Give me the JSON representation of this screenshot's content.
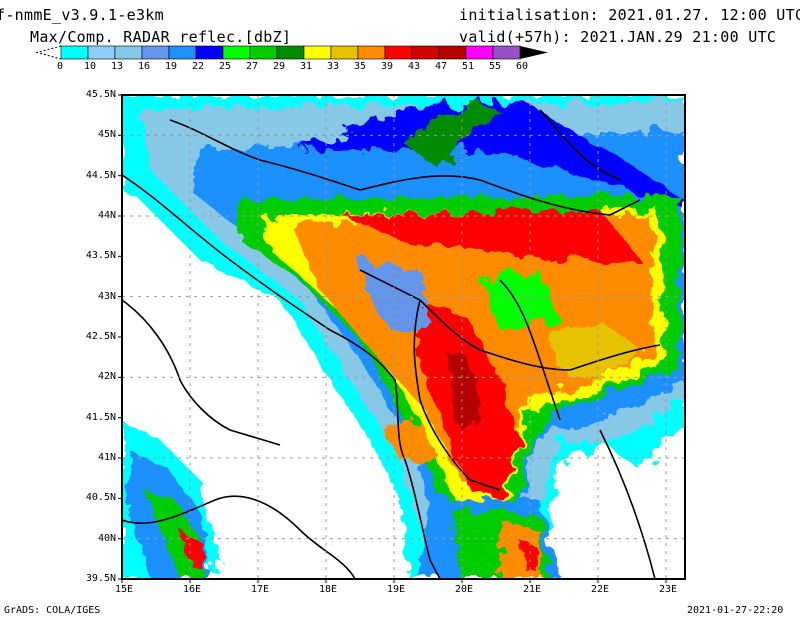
{
  "header": {
    "model": "f-nmmE_v3.9.1-e3km",
    "field": "Max/Comp. RADAR reflec.[dbZ]",
    "init": "initialisation: 2021.01.27. 12:00 UTC",
    "valid": "valid(+57h): 2021.JAN.29 21:00 UTC"
  },
  "colorbar": {
    "labels": [
      "0",
      "10",
      "13",
      "16",
      "19",
      "22",
      "25",
      "27",
      "29",
      "31",
      "33",
      "35",
      "39",
      "43",
      "47",
      "51",
      "55",
      "60"
    ],
    "colors": [
      "#00ffff",
      "#8ccdfa",
      "#87c8e6",
      "#6496eb",
      "#1e90ff",
      "#0000ff",
      "#00ff00",
      "#00cd00",
      "#008b00",
      "#ffff00",
      "#e6c200",
      "#ff8c00",
      "#ff0000",
      "#d20000",
      "#b40000",
      "#ff00ff",
      "#9650c8"
    ]
  },
  "map": {
    "lon_labels": [
      "15E",
      "16E",
      "17E",
      "18E",
      "19E",
      "20E",
      "21E",
      "22E",
      "23E"
    ],
    "lat_labels": [
      "45.5N",
      "45N",
      "44.5N",
      "44N",
      "43.5N",
      "43N",
      "42.5N",
      "42N",
      "41.5N",
      "41N",
      "40.5N",
      "40N",
      "39.5N"
    ]
  },
  "footer": {
    "left": "GrADS: COLA/IGES",
    "right": "2021-01-27-22:20"
  }
}
